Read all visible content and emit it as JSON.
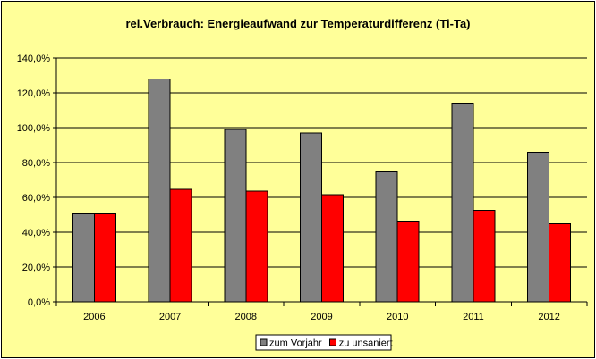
{
  "chart_data": {
    "type": "bar",
    "title": "rel.Verbrauch: Energieaufwand zur Temperaturdifferenz (Ti-Ta)",
    "xlabel": "",
    "ylabel": "",
    "categories": [
      "2006",
      "2007",
      "2008",
      "2009",
      "2010",
      "2011",
      "2012"
    ],
    "series": [
      {
        "name": "zum Vorjahr",
        "color": "#808080",
        "values": [
          50.5,
          128.0,
          99.0,
          97.0,
          74.5,
          114.0,
          86.0
        ]
      },
      {
        "name": "zu unsaniert",
        "color": "#ff0000",
        "values": [
          50.5,
          64.5,
          63.5,
          61.5,
          46.0,
          52.5,
          45.0
        ]
      }
    ],
    "ylim": [
      0,
      140
    ],
    "yticks": [
      0,
      20,
      40,
      60,
      80,
      100,
      120,
      140
    ],
    "ytick_labels": [
      "0,0%",
      "20,0%",
      "40,0%",
      "60,0%",
      "80,0%",
      "100,0%",
      "120,0%",
      "140,0%"
    ],
    "grid": true,
    "legend_position": "bottom",
    "colors": {
      "chart_background": "#ffff99",
      "plot_background": "#ffff99",
      "gridline": "#000000"
    }
  }
}
